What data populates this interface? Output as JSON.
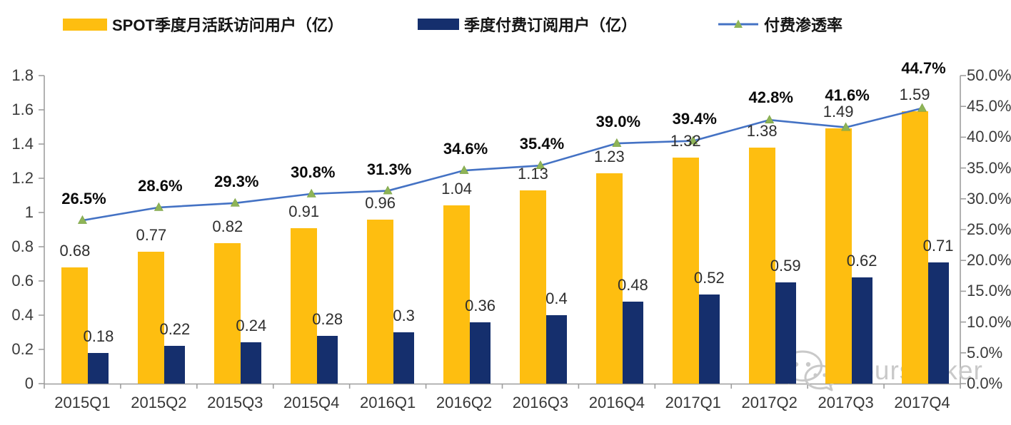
{
  "legend": {
    "items": [
      {
        "label": "SPOT季度月活跃访问用户（亿）",
        "color": "#FEBE10",
        "type": "bar"
      },
      {
        "label": "季度付费订阅用户（亿）",
        "color": "#152F6D",
        "type": "bar"
      },
      {
        "label": "付费渗透率",
        "color": "#4472C4",
        "marker_color": "#8EB457",
        "type": "line"
      }
    ]
  },
  "watermark": {
    "text": "Yourseeker",
    "icon": "wechat-icon",
    "color": "#c9c9c9"
  },
  "chart_data": {
    "type": "combo-bar-line",
    "title": "",
    "categories": [
      "2015Q1",
      "2015Q2",
      "2015Q3",
      "2015Q4",
      "2016Q1",
      "2016Q2",
      "2016Q3",
      "2016Q4",
      "2017Q1",
      "2017Q2",
      "2017Q3",
      "2017Q4"
    ],
    "series": [
      {
        "name": "SPOT季度月活跃访问用户（亿）",
        "type": "bar",
        "axis": "left",
        "color": "#FEBE10",
        "values": [
          0.68,
          0.77,
          0.82,
          0.91,
          0.96,
          1.04,
          1.13,
          1.23,
          1.32,
          1.38,
          1.49,
          1.59
        ],
        "labels": [
          "0.68",
          "0.77",
          "0.82",
          "0.91",
          "0.96",
          "1.04",
          "1.13",
          "1.23",
          "1.32",
          "1.38",
          "1.49",
          "1.59"
        ]
      },
      {
        "name": "季度付费订阅用户（亿）",
        "type": "bar",
        "axis": "left",
        "color": "#152F6D",
        "values": [
          0.18,
          0.22,
          0.24,
          0.28,
          0.3,
          0.36,
          0.4,
          0.48,
          0.52,
          0.59,
          0.62,
          0.71
        ],
        "labels": [
          "0.18",
          "0.22",
          "0.24",
          "0.28",
          "0.3",
          "0.36",
          "0.4",
          "0.48",
          "0.52",
          "0.59",
          "0.62",
          "0.71"
        ]
      },
      {
        "name": "付费渗透率",
        "type": "line",
        "axis": "right",
        "color": "#4472C4",
        "marker": "triangle",
        "marker_color": "#8EB457",
        "values": [
          26.5,
          28.6,
          29.3,
          30.8,
          31.3,
          34.6,
          35.4,
          39.0,
          39.4,
          42.8,
          41.6,
          44.7
        ],
        "labels": [
          "26.5%",
          "28.6%",
          "29.3%",
          "30.8%",
          "31.3%",
          "34.6%",
          "35.4%",
          "39.0%",
          "39.4%",
          "42.8%",
          "41.6%",
          "44.7%"
        ]
      }
    ],
    "left_axis": {
      "min": 0,
      "max": 1.8,
      "step": 0.2,
      "ticks": [
        "0",
        "0.2",
        "0.4",
        "0.6",
        "0.8",
        "1",
        "1.2",
        "1.4",
        "1.6",
        "1.8"
      ]
    },
    "right_axis": {
      "min": 0,
      "max": 50,
      "step": 5,
      "ticks": [
        "0.0%",
        "5.0%",
        "10.0%",
        "15.0%",
        "20.0%",
        "25.0%",
        "30.0%",
        "35.0%",
        "40.0%",
        "45.0%",
        "50.0%"
      ]
    },
    "grid": false,
    "legend_position": "top",
    "layout": {
      "x0": 62,
      "x1": 1345,
      "y_base": 538,
      "y_top": 106,
      "bar1_offset": -29,
      "bar1_width": 37,
      "bar2_offset": 8,
      "bar2_width": 29,
      "bar_label_dy": 23,
      "pct_label_dy": [
        30,
        30,
        30,
        30,
        30,
        30,
        30,
        30,
        31,
        31,
        45,
        56
      ],
      "axis_color": "#9e9e9e"
    }
  }
}
